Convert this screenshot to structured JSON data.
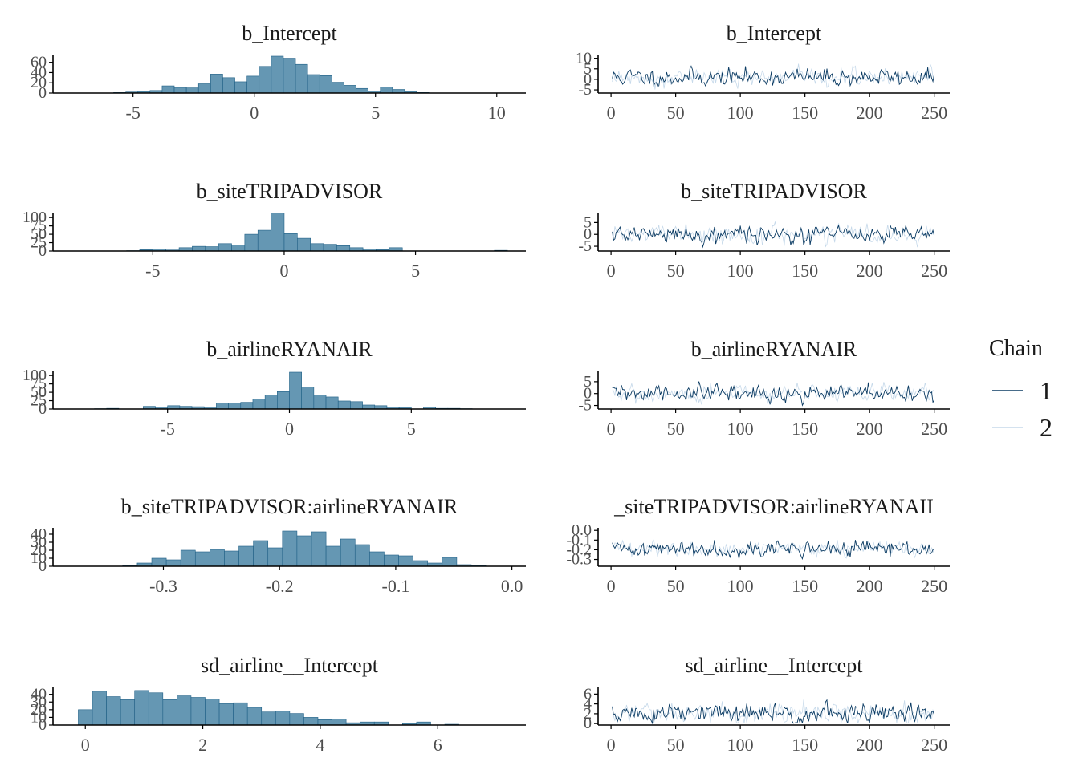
{
  "colors": {
    "hist_fill": "#6597b3",
    "hist_stroke": "#1f5f85",
    "chain1": "#0b3b63",
    "chain2": "#c6d9ea",
    "axis": "#000000"
  },
  "legend": {
    "title": "Chain",
    "entries": [
      {
        "label": "1",
        "color": "#0b3b63"
      },
      {
        "label": "2",
        "color": "#c6d9ea"
      }
    ]
  },
  "chart_data": [
    {
      "type": "bar",
      "title": "b_Intercept",
      "bins": [
        [
          -5.8,
          -5.3,
          1
        ],
        [
          -5.3,
          -4.8,
          2
        ],
        [
          -4.8,
          -4.3,
          3
        ],
        [
          -4.3,
          -3.8,
          5
        ],
        [
          -3.8,
          -3.3,
          14
        ],
        [
          -3.3,
          -2.8,
          11
        ],
        [
          -2.8,
          -2.3,
          10
        ],
        [
          -2.3,
          -1.8,
          18
        ],
        [
          -1.8,
          -1.3,
          37
        ],
        [
          -1.3,
          -0.8,
          30
        ],
        [
          -0.8,
          -0.3,
          22
        ],
        [
          -0.3,
          0.2,
          33
        ],
        [
          0.2,
          0.7,
          52
        ],
        [
          0.7,
          1.2,
          72
        ],
        [
          1.2,
          1.7,
          68
        ],
        [
          1.7,
          2.2,
          56
        ],
        [
          2.2,
          2.7,
          36
        ],
        [
          2.7,
          3.2,
          34
        ],
        [
          3.2,
          3.7,
          21
        ],
        [
          3.7,
          4.2,
          15
        ],
        [
          4.2,
          4.7,
          9
        ],
        [
          4.7,
          5.2,
          4
        ],
        [
          5.2,
          5.7,
          12
        ],
        [
          5.7,
          6.2,
          7
        ],
        [
          6.2,
          6.7,
          3
        ],
        [
          6.7,
          7.2,
          1
        ]
      ],
      "xlim": [
        -8.3,
        11.2
      ],
      "ylim": [
        0,
        72
      ],
      "xticks": [
        -5,
        0,
        5,
        10
      ],
      "xtick_labels": [
        "-5",
        "0",
        "5",
        "10"
      ],
      "yticks": [
        0,
        20,
        40,
        60
      ],
      "ytick_labels": [
        "0",
        "20",
        "40",
        "60"
      ]
    },
    {
      "type": "line",
      "title": "b_Intercept",
      "x_range": [
        1,
        250
      ],
      "xlim": [
        -10,
        262
      ],
      "ylim": [
        -6.5,
        11
      ],
      "center": 1,
      "spread": 2.6,
      "series": [
        {
          "name": "1",
          "seed": 11
        },
        {
          "name": "2",
          "seed": 12
        }
      ],
      "xticks": [
        0,
        50,
        100,
        150,
        200,
        250
      ],
      "xtick_labels": [
        "0",
        "50",
        "100",
        "150",
        "200",
        "250"
      ],
      "yticks": [
        -5,
        0,
        5,
        10
      ],
      "ytick_labels": [
        "-5",
        "0",
        "5",
        "10"
      ]
    },
    {
      "type": "bar",
      "title": "b_siteTRIPADVISOR",
      "bins": [
        [
          -6.0,
          -5.5,
          1
        ],
        [
          -5.5,
          -5.0,
          4
        ],
        [
          -5.0,
          -4.5,
          6
        ],
        [
          -4.5,
          -4.0,
          3
        ],
        [
          -4.0,
          -3.5,
          10
        ],
        [
          -3.5,
          -3.0,
          14
        ],
        [
          -3.0,
          -2.5,
          13
        ],
        [
          -2.5,
          -2.0,
          22
        ],
        [
          -2.0,
          -1.5,
          18
        ],
        [
          -1.5,
          -1.0,
          50
        ],
        [
          -1.0,
          -0.5,
          62
        ],
        [
          -0.5,
          0.0,
          114
        ],
        [
          0.0,
          0.5,
          52
        ],
        [
          0.5,
          1.0,
          38
        ],
        [
          1.0,
          1.5,
          22
        ],
        [
          1.5,
          2.0,
          20
        ],
        [
          2.0,
          2.5,
          16
        ],
        [
          2.5,
          3.0,
          10
        ],
        [
          3.0,
          3.5,
          6
        ],
        [
          3.5,
          4.0,
          4
        ],
        [
          4.0,
          4.5,
          10
        ],
        [
          8.0,
          8.5,
          2
        ]
      ],
      "xlim": [
        -8.8,
        9.2
      ],
      "ylim": [
        0,
        110
      ],
      "xticks": [
        -5,
        0,
        5
      ],
      "xtick_labels": [
        "-5",
        "0",
        "5"
      ],
      "yticks": [
        0,
        25,
        50,
        75,
        100
      ],
      "ytick_labels": [
        "0",
        "25",
        "50",
        "75",
        "100"
      ]
    },
    {
      "type": "line",
      "title": "b_siteTRIPADVISOR",
      "x_range": [
        1,
        250
      ],
      "xlim": [
        -10,
        262
      ],
      "ylim": [
        -7,
        8.5
      ],
      "center": 0,
      "spread": 2.2,
      "series": [
        {
          "name": "1",
          "seed": 21
        },
        {
          "name": "2",
          "seed": 22
        }
      ],
      "xticks": [
        0,
        50,
        100,
        150,
        200,
        250
      ],
      "xtick_labels": [
        "0",
        "50",
        "100",
        "150",
        "200",
        "250"
      ],
      "yticks": [
        -5,
        0,
        5
      ],
      "ytick_labels": [
        "-5",
        "0",
        "5"
      ]
    },
    {
      "type": "bar",
      "title": "b_airlineRYANAIR",
      "bins": [
        [
          -8.0,
          -7.5,
          1
        ],
        [
          -7.5,
          -7.0,
          2
        ],
        [
          -6.0,
          -5.5,
          8
        ],
        [
          -5.5,
          -5.0,
          6
        ],
        [
          -5.0,
          -4.5,
          10
        ],
        [
          -4.5,
          -4.0,
          8
        ],
        [
          -4.0,
          -3.5,
          7
        ],
        [
          -3.5,
          -3.0,
          6
        ],
        [
          -3.0,
          -2.5,
          18
        ],
        [
          -2.5,
          -2.0,
          18
        ],
        [
          -2.0,
          -1.5,
          20
        ],
        [
          -1.5,
          -1.0,
          30
        ],
        [
          -1.0,
          -0.5,
          42
        ],
        [
          -0.5,
          0.0,
          52
        ],
        [
          0.0,
          0.5,
          110
        ],
        [
          0.5,
          1.0,
          66
        ],
        [
          1.0,
          1.5,
          42
        ],
        [
          1.5,
          2.0,
          36
        ],
        [
          2.0,
          2.5,
          24
        ],
        [
          2.5,
          3.0,
          22
        ],
        [
          3.0,
          3.5,
          12
        ],
        [
          3.5,
          4.0,
          10
        ],
        [
          4.0,
          4.5,
          6
        ],
        [
          4.5,
          5.0,
          5
        ],
        [
          5.5,
          6.0,
          6
        ],
        [
          6.0,
          6.5,
          2
        ],
        [
          6.5,
          7.0,
          2
        ],
        [
          7.0,
          7.5,
          1
        ]
      ],
      "xlim": [
        -9.7,
        9.7
      ],
      "ylim": [
        0,
        110
      ],
      "xticks": [
        -5,
        0,
        5
      ],
      "xtick_labels": [
        "-5",
        "0",
        "5"
      ],
      "yticks": [
        0,
        25,
        50,
        75,
        100
      ],
      "ytick_labels": [
        "0",
        "25",
        "50",
        "75",
        "100"
      ]
    },
    {
      "type": "line",
      "title": "b_airlineRYANAIR",
      "x_range": [
        1,
        250
      ],
      "xlim": [
        -10,
        262
      ],
      "ylim": [
        -6.5,
        9
      ],
      "center": 0,
      "spread": 2.3,
      "series": [
        {
          "name": "1",
          "seed": 31
        },
        {
          "name": "2",
          "seed": 32
        }
      ],
      "xticks": [
        0,
        50,
        100,
        150,
        200,
        250
      ],
      "xtick_labels": [
        "0",
        "50",
        "100",
        "150",
        "200",
        "250"
      ],
      "yticks": [
        -5,
        0,
        5
      ],
      "ytick_labels": [
        "-5",
        "0",
        "5"
      ]
    },
    {
      "type": "bar",
      "title": "b_siteTRIPADVISOR:airlineRYANAIR",
      "bins": [
        [
          -0.335,
          -0.3225,
          1
        ],
        [
          -0.3225,
          -0.31,
          4
        ],
        [
          -0.31,
          -0.2975,
          10
        ],
        [
          -0.2975,
          -0.285,
          8
        ],
        [
          -0.285,
          -0.2725,
          20
        ],
        [
          -0.2725,
          -0.26,
          18
        ],
        [
          -0.26,
          -0.2475,
          21
        ],
        [
          -0.2475,
          -0.235,
          19
        ],
        [
          -0.235,
          -0.2225,
          25
        ],
        [
          -0.2225,
          -0.21,
          32
        ],
        [
          -0.21,
          -0.1975,
          23
        ],
        [
          -0.1975,
          -0.185,
          44
        ],
        [
          -0.185,
          -0.1725,
          38
        ],
        [
          -0.1725,
          -0.16,
          43
        ],
        [
          -0.16,
          -0.1475,
          25
        ],
        [
          -0.1475,
          -0.135,
          34
        ],
        [
          -0.135,
          -0.1225,
          27
        ],
        [
          -0.1225,
          -0.11,
          18
        ],
        [
          -0.11,
          -0.0975,
          14
        ],
        [
          -0.0975,
          -0.085,
          13
        ],
        [
          -0.085,
          -0.0725,
          7
        ],
        [
          -0.0725,
          -0.06,
          4
        ],
        [
          -0.06,
          -0.0475,
          11
        ],
        [
          -0.0475,
          -0.035,
          2
        ],
        [
          -0.035,
          -0.0225,
          1
        ]
      ],
      "xlim": [
        -0.395,
        0.012
      ],
      "ylim": [
        0,
        46
      ],
      "xticks": [
        -0.3,
        -0.2,
        -0.1,
        0.0
      ],
      "xtick_labels": [
        "-0.3",
        "-0.2",
        "-0.1",
        "0.0"
      ],
      "yticks": [
        0,
        10,
        20,
        30,
        40
      ],
      "ytick_labels": [
        "0",
        "10",
        "20",
        "30",
        "40"
      ]
    },
    {
      "type": "line",
      "title": "_siteTRIPADVISOR:airlineRYANAII",
      "x_range": [
        1,
        250
      ],
      "xlim": [
        -10,
        262
      ],
      "ylim": [
        -0.37,
        0.01
      ],
      "center": -0.19,
      "spread": 0.05,
      "series": [
        {
          "name": "1",
          "seed": 41
        },
        {
          "name": "2",
          "seed": 42
        }
      ],
      "xticks": [
        0,
        50,
        100,
        150,
        200,
        250
      ],
      "xtick_labels": [
        "0",
        "50",
        "100",
        "150",
        "200",
        "250"
      ],
      "yticks": [
        -0.3,
        -0.2,
        -0.1,
        0.0
      ],
      "ytick_labels": [
        "-0.3",
        "-0.2",
        "-0.1",
        "0.0"
      ]
    },
    {
      "type": "bar",
      "title": "sd_airline__Intercept",
      "bins": [
        [
          -0.12,
          0.12,
          20
        ],
        [
          0.12,
          0.36,
          44
        ],
        [
          0.36,
          0.6,
          37
        ],
        [
          0.6,
          0.84,
          33
        ],
        [
          0.84,
          1.08,
          45
        ],
        [
          1.08,
          1.32,
          42
        ],
        [
          1.32,
          1.56,
          33
        ],
        [
          1.56,
          1.8,
          38
        ],
        [
          1.8,
          2.04,
          36
        ],
        [
          2.04,
          2.28,
          34
        ],
        [
          2.28,
          2.52,
          28
        ],
        [
          2.52,
          2.76,
          29
        ],
        [
          2.76,
          3.0,
          23
        ],
        [
          3.0,
          3.24,
          17
        ],
        [
          3.24,
          3.48,
          18
        ],
        [
          3.48,
          3.72,
          15
        ],
        [
          3.72,
          3.96,
          10
        ],
        [
          3.96,
          4.2,
          7
        ],
        [
          4.2,
          4.44,
          8
        ],
        [
          4.44,
          4.68,
          3
        ],
        [
          4.68,
          4.92,
          4
        ],
        [
          4.92,
          5.16,
          4
        ],
        [
          5.4,
          5.64,
          2
        ],
        [
          5.64,
          5.88,
          4
        ],
        [
          6.12,
          6.36,
          1
        ]
      ],
      "xlim": [
        -0.55,
        7.5
      ],
      "ylim": [
        0,
        48
      ],
      "xticks": [
        0,
        2,
        4,
        6
      ],
      "xtick_labels": [
        "0",
        "2",
        "4",
        "6"
      ],
      "yticks": [
        0,
        10,
        20,
        30,
        40
      ],
      "ytick_labels": [
        "0",
        "10",
        "20",
        "30",
        "40"
      ]
    },
    {
      "type": "line",
      "title": "sd_airline__Intercept",
      "x_range": [
        1,
        250
      ],
      "xlim": [
        -10,
        262
      ],
      "ylim": [
        -0.3,
        7.2
      ],
      "center": 2.0,
      "spread": 1.3,
      "positive": true,
      "series": [
        {
          "name": "1",
          "seed": 51
        },
        {
          "name": "2",
          "seed": 52
        }
      ],
      "xticks": [
        0,
        50,
        100,
        150,
        200,
        250
      ],
      "xtick_labels": [
        "0",
        "50",
        "100",
        "150",
        "200",
        "250"
      ],
      "yticks": [
        0,
        2,
        4,
        6
      ],
      "ytick_labels": [
        "0",
        "2",
        "4",
        "6"
      ]
    }
  ]
}
